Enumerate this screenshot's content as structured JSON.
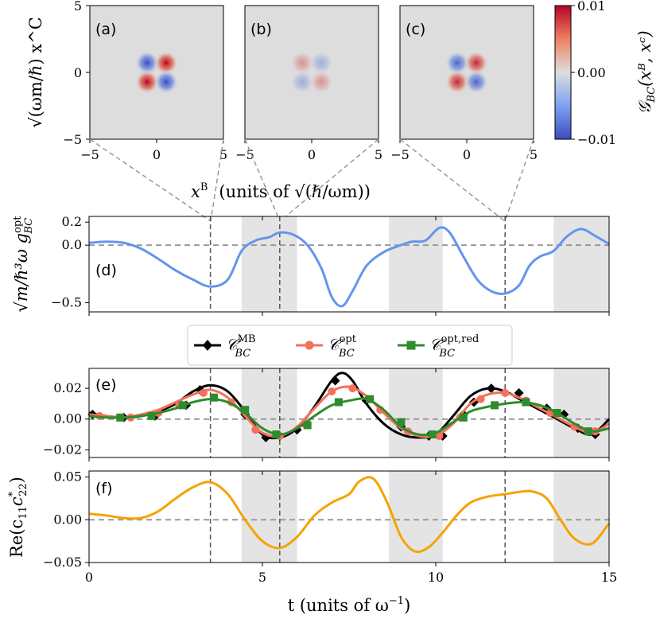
{
  "chart_data": [
    {
      "type": "heatmap",
      "panels": [
        {
          "label": "(a)",
          "pattern": "quadrupole",
          "amplitude": 1.0,
          "sign": 1
        },
        {
          "label": "(b)",
          "pattern": "quadrupole",
          "amplitude": 0.35,
          "sign": -1
        },
        {
          "label": "(c)",
          "pattern": "quadrupole",
          "amplitude": 0.85,
          "sign": 1
        }
      ],
      "xlim": [
        -5,
        5
      ],
      "ylim": [
        -5,
        5
      ],
      "x_ticks": [
        "−5",
        "0",
        "5"
      ],
      "y_ticks": [
        "5",
        "0",
        "−5"
      ],
      "ylabel": "√(ωm/ℏ) x^C",
      "xlabel_var": "x",
      "xlabel_sup": "B",
      "xlabel_units": "(units of √(ℏ/ωm))",
      "colorbar": {
        "min": -0.01,
        "max": 0.01,
        "ticks": [
          "0.01",
          "0.00",
          "−0.01"
        ],
        "label": "𝒢BC(xB, xC)",
        "colors": [
          "#3b4cc0",
          "#dddddd",
          "#b40426"
        ]
      },
      "snapshot_times": [
        3.5,
        5.5,
        12.0
      ]
    },
    {
      "type": "line",
      "panel_label": "(d)",
      "ylabel": "√(m/ℏ³ω) g_BC^opt",
      "xlim": [
        0,
        15
      ],
      "ylim": [
        -0.58,
        0.25
      ],
      "y_ticks": [
        0.2,
        0.0,
        -0.5
      ],
      "y_tick_labels": [
        "0.2",
        "0.0",
        "−0.5"
      ],
      "series": [
        {
          "name": "g_BC^opt",
          "color": "#6495ED",
          "x": [
            0.0,
            0.5,
            1.0,
            1.5,
            2.0,
            2.5,
            3.0,
            3.5,
            4.0,
            4.4,
            4.8,
            5.2,
            5.5,
            5.9,
            6.3,
            6.7,
            7.0,
            7.3,
            7.6,
            8.0,
            8.5,
            8.9,
            9.3,
            9.7,
            10.1,
            10.4,
            10.8,
            11.2,
            11.6,
            12.0,
            12.4,
            12.7,
            13.0,
            13.4,
            13.8,
            14.2,
            14.6,
            15.0
          ],
          "y": [
            0.02,
            0.03,
            0.02,
            -0.03,
            -0.12,
            -0.22,
            -0.3,
            -0.36,
            -0.3,
            -0.05,
            0.04,
            0.07,
            0.11,
            0.09,
            0.0,
            -0.2,
            -0.45,
            -0.53,
            -0.4,
            -0.18,
            -0.06,
            -0.01,
            0.03,
            0.04,
            0.15,
            0.11,
            -0.1,
            -0.3,
            -0.4,
            -0.42,
            -0.35,
            -0.18,
            -0.1,
            -0.05,
            0.08,
            0.14,
            0.08,
            0.01
          ]
        }
      ]
    },
    {
      "type": "line",
      "panel_label": "(e)",
      "xlim": [
        0,
        15
      ],
      "ylim": [
        -0.025,
        0.033
      ],
      "y_ticks": [
        0.02,
        0.0,
        -0.02
      ],
      "y_tick_labels": [
        "0.02",
        "0.00",
        "−0.02"
      ],
      "legend": [
        {
          "main": "𝒞",
          "sup": "MB",
          "sub": "BC",
          "marker": "diamond",
          "color": "#000000"
        },
        {
          "main": "𝒞",
          "sup": "opt",
          "sub": "BC",
          "marker": "circle",
          "color": "#F4705A"
        },
        {
          "main": "𝒞",
          "sup": "opt,red",
          "sub": "BC",
          "marker": "square",
          "color": "#2E8B2E"
        }
      ],
      "series": [
        {
          "name": "C_BC^MB",
          "color": "#000000",
          "marker": "diamond",
          "x": [
            0.0,
            0.5,
            1.0,
            1.5,
            2.0,
            2.5,
            3.0,
            3.5,
            4.0,
            4.5,
            5.0,
            5.5,
            6.0,
            6.5,
            7.0,
            7.3,
            7.6,
            8.0,
            8.5,
            9.0,
            9.5,
            10.0,
            10.5,
            11.0,
            11.5,
            12.0,
            12.5,
            13.0,
            13.5,
            14.0,
            14.5,
            15.0
          ],
          "y": [
            0.004,
            0.002,
            0.001,
            0.002,
            0.005,
            0.01,
            0.018,
            0.022,
            0.018,
            0.005,
            -0.01,
            -0.012,
            -0.006,
            0.008,
            0.025,
            0.03,
            0.025,
            0.01,
            -0.003,
            -0.01,
            -0.012,
            -0.01,
            0.002,
            0.015,
            0.02,
            0.018,
            0.012,
            0.006,
            0.0,
            -0.006,
            -0.01,
            0.0
          ],
          "marker_x": [
            0.1,
            1.0,
            1.9,
            2.8,
            3.2,
            4.5,
            5.1,
            5.5,
            6.0,
            7.1,
            8.0,
            9.0,
            9.8,
            10.2,
            10.8,
            11.1,
            11.6,
            12.4,
            13.2,
            13.7,
            14.1,
            14.6
          ],
          "marker_y": [
            0.003,
            0.001,
            0.002,
            0.009,
            0.019,
            0.003,
            -0.012,
            -0.011,
            -0.007,
            0.025,
            0.012,
            -0.005,
            -0.011,
            -0.011,
            0.003,
            0.011,
            0.02,
            0.017,
            0.007,
            0.003,
            -0.006,
            -0.01
          ]
        },
        {
          "name": "C_BC^opt",
          "color": "#F4705A",
          "marker": "circle",
          "x": [
            0.0,
            0.5,
            1.0,
            1.5,
            2.0,
            2.5,
            3.0,
            3.5,
            4.0,
            4.5,
            5.0,
            5.5,
            6.0,
            6.5,
            7.0,
            7.5,
            8.0,
            8.5,
            9.0,
            9.5,
            10.0,
            10.5,
            11.0,
            11.5,
            12.0,
            12.5,
            13.0,
            13.5,
            14.0,
            14.5,
            15.0
          ],
          "y": [
            0.003,
            0.002,
            0.001,
            0.003,
            0.006,
            0.011,
            0.016,
            0.019,
            0.014,
            0.002,
            -0.009,
            -0.011,
            -0.005,
            0.007,
            0.018,
            0.021,
            0.015,
            0.004,
            -0.006,
            -0.011,
            -0.011,
            -0.003,
            0.01,
            0.016,
            0.017,
            0.013,
            0.007,
            0.001,
            -0.005,
            -0.009,
            -0.003
          ],
          "marker_x": [
            0.3,
            1.2,
            2.0,
            2.6,
            3.3,
            4.1,
            4.8,
            5.5,
            6.2,
            7.0,
            7.6,
            8.4,
            9.2,
            10.1,
            10.7,
            11.3,
            12.0,
            12.6,
            13.3,
            14.0,
            14.6
          ],
          "marker_y": [
            0.002,
            0.001,
            0.004,
            0.009,
            0.017,
            0.011,
            -0.007,
            -0.011,
            -0.003,
            0.018,
            0.02,
            0.006,
            -0.008,
            -0.011,
            0.001,
            0.013,
            0.017,
            0.012,
            0.004,
            -0.005,
            -0.008
          ]
        },
        {
          "name": "C_BC^opt,red",
          "color": "#2E8B2E",
          "marker": "square",
          "x": [
            0.0,
            0.5,
            1.0,
            1.5,
            2.0,
            2.5,
            3.0,
            3.5,
            4.0,
            4.5,
            5.0,
            5.5,
            6.0,
            6.5,
            7.0,
            7.5,
            8.0,
            8.5,
            9.0,
            9.5,
            10.0,
            10.5,
            11.0,
            11.5,
            12.0,
            12.5,
            13.0,
            13.5,
            14.0,
            14.5,
            15.0
          ],
          "y": [
            0.002,
            0.001,
            0.001,
            0.002,
            0.004,
            0.007,
            0.011,
            0.013,
            0.011,
            0.004,
            -0.006,
            -0.01,
            -0.006,
            0.002,
            0.009,
            0.012,
            0.013,
            0.006,
            -0.005,
            -0.01,
            -0.009,
            -0.002,
            0.005,
            0.008,
            0.01,
            0.011,
            0.009,
            0.004,
            -0.003,
            -0.008,
            -0.006
          ],
          "marker_x": [
            0.9,
            1.8,
            2.7,
            3.6,
            4.5,
            5.4,
            6.3,
            7.2,
            8.1,
            9.0,
            9.9,
            10.8,
            11.7,
            12.6,
            13.5,
            14.4
          ],
          "marker_y": [
            0.001,
            0.002,
            0.009,
            0.014,
            0.006,
            -0.01,
            -0.004,
            0.011,
            0.013,
            -0.002,
            -0.01,
            0.001,
            0.009,
            0.011,
            0.004,
            -0.008
          ]
        }
      ]
    },
    {
      "type": "line",
      "panel_label": "(f)",
      "ylabel": "Re(c11 c22*)",
      "xlabel": "t (units of ω⁻¹)",
      "xlim": [
        0,
        15
      ],
      "ylim": [
        -0.05,
        0.057
      ],
      "y_ticks": [
        0.05,
        0.0,
        -0.05
      ],
      "y_tick_labels": [
        "0.05",
        "0.00",
        "−0.05"
      ],
      "x_ticks": [
        0,
        5,
        10,
        15
      ],
      "series": [
        {
          "name": "Re(c11 c22*)",
          "color": "#F5A300",
          "x": [
            0.0,
            0.5,
            1.0,
            1.5,
            2.0,
            2.5,
            3.0,
            3.5,
            4.0,
            4.5,
            5.0,
            5.5,
            6.0,
            6.5,
            7.0,
            7.5,
            7.8,
            8.2,
            8.6,
            9.0,
            9.4,
            9.8,
            10.2,
            10.6,
            11.0,
            11.5,
            12.0,
            12.5,
            12.8,
            13.2,
            13.6,
            14.0,
            14.5,
            15.0
          ],
          "y": [
            0.007,
            0.005,
            0.002,
            0.002,
            0.01,
            0.025,
            0.038,
            0.044,
            0.03,
            0.0,
            -0.025,
            -0.033,
            -0.02,
            0.005,
            0.02,
            0.03,
            0.045,
            0.048,
            0.02,
            -0.02,
            -0.037,
            -0.032,
            -0.015,
            0.005,
            0.02,
            0.027,
            0.03,
            0.033,
            0.033,
            0.025,
            0.0,
            -0.022,
            -0.028,
            -0.004
          ]
        }
      ],
      "xlabel_main": "t (units of ω",
      "xlabel_sup": "−1",
      "xlabel_end": ")"
    }
  ],
  "shared": {
    "shaded_t": [
      [
        4.4,
        6.0
      ],
      [
        8.65,
        10.2
      ],
      [
        13.4,
        15.0
      ]
    ],
    "dashed_t": [
      3.5,
      5.5,
      12.0
    ],
    "shade_color": "#e4e4e4",
    "dash_color": "#555555",
    "zero_line_color": "#999999",
    "heatmap_background": "#dddddd"
  },
  "labels": {
    "colorbar_label_main": "𝒢",
    "colorbar_label_sub": "BC",
    "colorbar_label_args": "(xᴮ, xᶜ)",
    "d_ylabel_main": "√m/ℏ³ω g",
    "d_ylabel_sup": "opt",
    "d_ylabel_sub": "BC",
    "f_ylabel_main": "Re(c",
    "f_ylabel_sub1": "11",
    "f_ylabel_mid": "c",
    "f_ylabel_sup": "*",
    "f_ylabel_sub2": "22",
    "f_ylabel_end": ")"
  }
}
